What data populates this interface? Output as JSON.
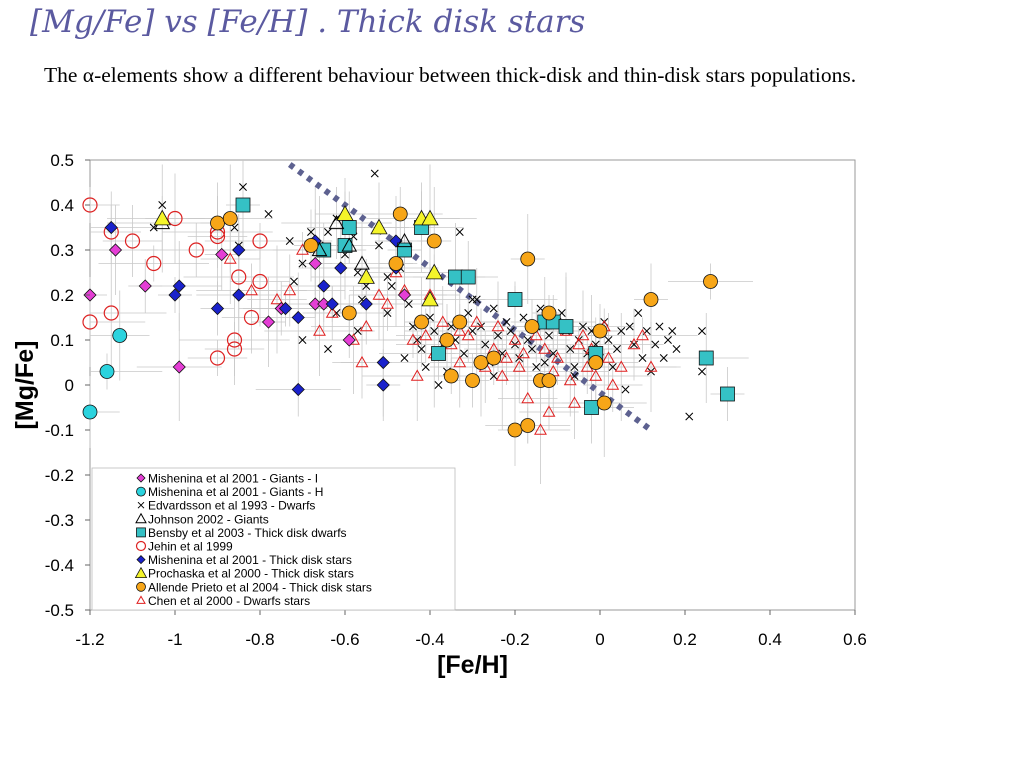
{
  "slide": {
    "title": "[Mg/Fe] vs [Fe/H] . Thick disk stars",
    "text": "The α-elements show a different behaviour between thick-disk and thin-disk stars populations."
  },
  "chart_data": {
    "type": "scatter",
    "xlabel": "[Fe/H]",
    "ylabel": "[Mg/Fe]",
    "xlim": [
      -1.2,
      0.6
    ],
    "ylim": [
      -0.5,
      0.5
    ],
    "xticks": [
      "-1.2",
      "-1",
      "-0.8",
      "-0.6",
      "-0.4",
      "-0.2",
      "0",
      "0.2",
      "0.4",
      "0.6"
    ],
    "yticks": [
      "0.5",
      "0.4",
      "0.3",
      "0.2",
      "0.1",
      "0",
      "-0.1",
      "-0.2",
      "-0.3",
      "-0.4",
      "-0.5"
    ],
    "legend_position": "bottom-left",
    "grid": false,
    "trend_line": {
      "style": "dotted",
      "color": "#5d6190",
      "points": [
        [
          -0.73,
          0.49
        ],
        [
          0.12,
          -0.1
        ]
      ]
    },
    "series": [
      {
        "name": "Mishenina et al 2001 - Giants - I",
        "marker": "diamond",
        "color": "#e43ed5",
        "points": [
          [
            -1.2,
            0.2
          ],
          [
            -1.14,
            0.3
          ],
          [
            -1.07,
            0.22
          ],
          [
            -0.99,
            0.04
          ],
          [
            -0.89,
            0.29
          ],
          [
            -0.85,
            0.3
          ],
          [
            -0.78,
            0.14
          ],
          [
            -0.75,
            0.17
          ],
          [
            -0.67,
            0.27
          ],
          [
            -0.67,
            0.18
          ],
          [
            -0.59,
            0.1
          ],
          [
            -0.46,
            0.2
          ],
          [
            -0.65,
            0.18
          ]
        ]
      },
      {
        "name": "Mishenina et al 2001 - Giants - H",
        "marker": "circle",
        "color": "#2bd3de",
        "points": [
          [
            -1.2,
            -0.06
          ],
          [
            -1.16,
            0.03
          ],
          [
            -1.13,
            0.11
          ]
        ]
      },
      {
        "name": "Edvardsson et al 1993 - Dwarfs",
        "marker": "x",
        "color": "#000000",
        "points": [
          [
            -1.03,
            0.4
          ],
          [
            -1.05,
            0.35
          ],
          [
            -0.84,
            0.44
          ],
          [
            -0.86,
            0.35
          ],
          [
            -0.85,
            0.31
          ],
          [
            -0.78,
            0.38
          ],
          [
            -0.73,
            0.32
          ],
          [
            -0.72,
            0.23
          ],
          [
            -0.7,
            0.27
          ],
          [
            -0.68,
            0.34
          ],
          [
            -0.66,
            0.31
          ],
          [
            -0.64,
            0.34
          ],
          [
            -0.62,
            0.37
          ],
          [
            -0.6,
            0.29
          ],
          [
            -0.58,
            0.33
          ],
          [
            -0.57,
            0.25
          ],
          [
            -0.56,
            0.19
          ],
          [
            -0.55,
            0.22
          ],
          [
            -0.53,
            0.47
          ],
          [
            -0.52,
            0.31
          ],
          [
            -0.5,
            0.24
          ],
          [
            -0.49,
            0.22
          ],
          [
            -0.47,
            0.26
          ],
          [
            -0.45,
            0.18
          ],
          [
            -0.44,
            0.13
          ],
          [
            -0.43,
            0.1
          ],
          [
            -0.42,
            0.08
          ],
          [
            -0.41,
            0.04
          ],
          [
            -0.4,
            0.15
          ],
          [
            -0.39,
            0.12
          ],
          [
            -0.38,
            0.0
          ],
          [
            -0.37,
            0.09
          ],
          [
            -0.36,
            0.03
          ],
          [
            -0.35,
            0.13
          ],
          [
            -0.34,
            0.1
          ],
          [
            -0.33,
            0.34
          ],
          [
            -0.32,
            0.07
          ],
          [
            -0.31,
            0.16
          ],
          [
            -0.3,
            0.12
          ],
          [
            -0.29,
            0.19
          ],
          [
            -0.28,
            0.13
          ],
          [
            -0.27,
            0.09
          ],
          [
            -0.26,
            0.05
          ],
          [
            -0.25,
            0.17
          ],
          [
            -0.24,
            0.11
          ],
          [
            -0.23,
            0.07
          ],
          [
            -0.22,
            0.14
          ],
          [
            -0.21,
            0.12
          ],
          [
            -0.2,
            0.09
          ],
          [
            -0.19,
            0.06
          ],
          [
            -0.18,
            0.15
          ],
          [
            -0.17,
            0.1
          ],
          [
            -0.16,
            0.08
          ],
          [
            -0.15,
            0.13
          ],
          [
            -0.14,
            0.17
          ],
          [
            -0.13,
            0.05
          ],
          [
            -0.12,
            0.11
          ],
          [
            -0.11,
            0.07
          ],
          [
            -0.1,
            0.14
          ],
          [
            -0.09,
            0.16
          ],
          [
            -0.08,
            0.12
          ],
          [
            -0.07,
            0.08
          ],
          [
            -0.06,
            0.04
          ],
          [
            -0.05,
            0.1
          ],
          [
            -0.04,
            0.13
          ],
          [
            -0.03,
            0.07
          ],
          [
            -0.02,
            0.12
          ],
          [
            -0.01,
            0.09
          ],
          [
            0.0,
            0.06
          ],
          [
            0.01,
            0.14
          ],
          [
            0.02,
            0.1
          ],
          [
            0.03,
            0.04
          ],
          [
            0.04,
            0.08
          ],
          [
            0.05,
            0.12
          ],
          [
            0.06,
            -0.01
          ],
          [
            0.07,
            0.13
          ],
          [
            0.08,
            0.09
          ],
          [
            0.09,
            0.16
          ],
          [
            0.1,
            0.06
          ],
          [
            0.11,
            0.12
          ],
          [
            0.12,
            0.03
          ],
          [
            0.13,
            0.09
          ],
          [
            0.14,
            0.13
          ],
          [
            0.15,
            0.06
          ],
          [
            0.16,
            0.1
          ],
          [
            0.17,
            0.12
          ],
          [
            0.18,
            0.08
          ],
          [
            0.21,
            -0.07
          ],
          [
            0.24,
            0.12
          ],
          [
            0.24,
            0.03
          ],
          [
            -0.62,
            0.16
          ],
          [
            -0.7,
            0.1
          ],
          [
            -0.64,
            0.08
          ],
          [
            -0.57,
            0.12
          ],
          [
            -0.5,
            0.16
          ],
          [
            -0.46,
            0.06
          ],
          [
            -0.3,
            0.19
          ],
          [
            -0.25,
            0.02
          ],
          [
            -0.15,
            0.04
          ],
          [
            -0.06,
            0.02
          ]
        ]
      },
      {
        "name": "Johnson 2002 - Giants",
        "marker": "triangle",
        "color": "#000000",
        "points": [
          [
            -1.03,
            0.36
          ],
          [
            -0.66,
            0.3
          ],
          [
            -0.62,
            0.36
          ],
          [
            -0.59,
            0.31
          ],
          [
            -0.56,
            0.27
          ],
          [
            -0.46,
            0.32
          ]
        ]
      },
      {
        "name": "Bensby et al 2003 - Thick disk dwarfs",
        "marker": "square",
        "color": "#35c1c5",
        "points": [
          [
            -0.84,
            0.4
          ],
          [
            -0.65,
            0.3
          ],
          [
            -0.6,
            0.31
          ],
          [
            -0.59,
            0.35
          ],
          [
            -0.46,
            0.3
          ],
          [
            -0.42,
            0.35
          ],
          [
            -0.38,
            0.07
          ],
          [
            -0.34,
            0.24
          ],
          [
            -0.31,
            0.24
          ],
          [
            -0.2,
            0.19
          ],
          [
            -0.13,
            0.14
          ],
          [
            -0.11,
            0.14
          ],
          [
            -0.08,
            0.13
          ],
          [
            -0.02,
            -0.05
          ],
          [
            -0.01,
            0.07
          ],
          [
            0.25,
            0.06
          ],
          [
            0.3,
            -0.02
          ]
        ]
      },
      {
        "name": "Jehin et al 1999",
        "marker": "open-circle",
        "color": "#dd2222",
        "points": [
          [
            -1.2,
            0.4
          ],
          [
            -1.2,
            0.14
          ],
          [
            -1.15,
            0.34
          ],
          [
            -1.15,
            0.16
          ],
          [
            -1.1,
            0.32
          ],
          [
            -1.05,
            0.27
          ],
          [
            -1.0,
            0.37
          ],
          [
            -0.95,
            0.3
          ],
          [
            -0.9,
            0.33
          ],
          [
            -0.9,
            0.34
          ],
          [
            -0.9,
            0.06
          ],
          [
            -0.86,
            0.1
          ],
          [
            -0.86,
            0.08
          ],
          [
            -0.85,
            0.24
          ],
          [
            -0.82,
            0.15
          ],
          [
            -0.8,
            0.32
          ],
          [
            -0.8,
            0.23
          ]
        ]
      },
      {
        "name": "Mishenina et al 2001 - Thick disk stars",
        "marker": "diamond",
        "color": "#1a22cc",
        "points": [
          [
            -1.15,
            0.35
          ],
          [
            -1.0,
            0.2
          ],
          [
            -0.99,
            0.22
          ],
          [
            -0.9,
            0.17
          ],
          [
            -0.85,
            0.2
          ],
          [
            -0.85,
            0.3
          ],
          [
            -0.74,
            0.17
          ],
          [
            -0.71,
            0.15
          ],
          [
            -0.71,
            -0.01
          ],
          [
            -0.67,
            0.32
          ],
          [
            -0.65,
            0.22
          ],
          [
            -0.63,
            0.18
          ],
          [
            -0.61,
            0.26
          ],
          [
            -0.55,
            0.18
          ],
          [
            -0.51,
            0.05
          ],
          [
            -0.51,
            0.0
          ],
          [
            -0.48,
            0.26
          ],
          [
            -0.48,
            0.32
          ]
        ]
      },
      {
        "name": "Prochaska et al 2000 - Thick disk stars",
        "marker": "triangle-filled",
        "color": "#f4f42a",
        "points": [
          [
            -1.03,
            0.37
          ],
          [
            -0.6,
            0.38
          ],
          [
            -0.55,
            0.24
          ],
          [
            -0.52,
            0.35
          ],
          [
            -0.42,
            0.37
          ],
          [
            -0.4,
            0.37
          ],
          [
            -0.4,
            0.19
          ],
          [
            -0.39,
            0.25
          ]
        ]
      },
      {
        "name": "Allende Prieto et al 2004 - Thick disk stars",
        "marker": "circle",
        "color": "#f7a618",
        "points": [
          [
            -0.9,
            0.36
          ],
          [
            -0.87,
            0.37
          ],
          [
            -0.68,
            0.31
          ],
          [
            -0.59,
            0.16
          ],
          [
            -0.48,
            0.27
          ],
          [
            -0.47,
            0.38
          ],
          [
            -0.39,
            0.32
          ],
          [
            -0.36,
            0.1
          ],
          [
            -0.35,
            0.02
          ],
          [
            -0.33,
            0.14
          ],
          [
            -0.3,
            0.01
          ],
          [
            -0.28,
            0.05
          ],
          [
            -0.2,
            -0.1
          ],
          [
            -0.17,
            -0.09
          ],
          [
            -0.17,
            0.28
          ],
          [
            -0.16,
            0.13
          ],
          [
            -0.14,
            0.01
          ],
          [
            -0.12,
            0.01
          ],
          [
            -0.12,
            0.16
          ],
          [
            -0.01,
            0.05
          ],
          [
            0.0,
            0.12
          ],
          [
            0.01,
            -0.04
          ],
          [
            0.12,
            0.19
          ],
          [
            0.26,
            0.23
          ],
          [
            -0.42,
            0.14
          ],
          [
            -0.25,
            0.06
          ]
        ]
      },
      {
        "name": "Chen et al 2000 - Dwarfs stars",
        "marker": "open-triangle",
        "color": "#e02020",
        "points": [
          [
            -0.87,
            0.28
          ],
          [
            -0.82,
            0.21
          ],
          [
            -0.76,
            0.19
          ],
          [
            -0.73,
            0.21
          ],
          [
            -0.7,
            0.3
          ],
          [
            -0.66,
            0.12
          ],
          [
            -0.63,
            0.16
          ],
          [
            -0.58,
            0.1
          ],
          [
            -0.56,
            0.05
          ],
          [
            -0.55,
            0.13
          ],
          [
            -0.52,
            0.2
          ],
          [
            -0.5,
            0.18
          ],
          [
            -0.48,
            0.25
          ],
          [
            -0.46,
            0.21
          ],
          [
            -0.44,
            0.1
          ],
          [
            -0.43,
            0.02
          ],
          [
            -0.41,
            0.11
          ],
          [
            -0.39,
            0.07
          ],
          [
            -0.37,
            0.14
          ],
          [
            -0.35,
            0.09
          ],
          [
            -0.33,
            0.05
          ],
          [
            -0.31,
            0.11
          ],
          [
            -0.29,
            0.14
          ],
          [
            -0.27,
            0.04
          ],
          [
            -0.25,
            0.08
          ],
          [
            -0.24,
            0.13
          ],
          [
            -0.22,
            0.06
          ],
          [
            -0.2,
            0.1
          ],
          [
            -0.19,
            0.04
          ],
          [
            -0.18,
            0.07
          ],
          [
            -0.17,
            -0.03
          ],
          [
            -0.15,
            0.11
          ],
          [
            -0.14,
            -0.1
          ],
          [
            -0.13,
            0.08
          ],
          [
            -0.12,
            -0.06
          ],
          [
            -0.11,
            0.03
          ],
          [
            -0.1,
            0.06
          ],
          [
            -0.08,
            0.12
          ],
          [
            -0.07,
            0.01
          ],
          [
            -0.05,
            0.09
          ],
          [
            -0.04,
            0.11
          ],
          [
            -0.03,
            0.04
          ],
          [
            -0.02,
            0.08
          ],
          [
            -0.01,
            0.02
          ],
          [
            0.01,
            0.13
          ],
          [
            0.02,
            0.06
          ],
          [
            0.03,
            0.0
          ],
          [
            0.05,
            0.04
          ],
          [
            0.08,
            0.09
          ],
          [
            0.1,
            0.11
          ],
          [
            0.12,
            0.04
          ],
          [
            -0.33,
            0.12
          ],
          [
            -0.23,
            0.02
          ],
          [
            -0.06,
            -0.04
          ],
          [
            -0.4,
            0.2
          ]
        ]
      }
    ]
  }
}
